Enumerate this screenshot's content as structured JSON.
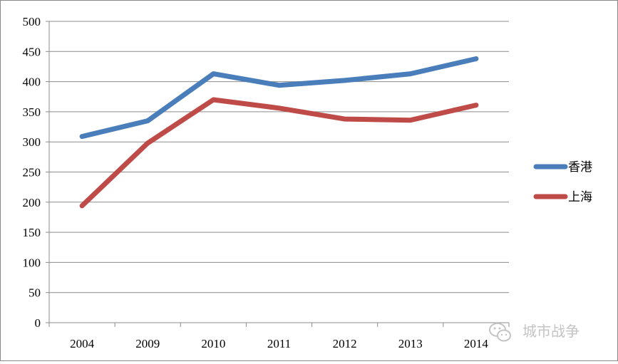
{
  "chart_data": {
    "type": "line",
    "categories": [
      "2004",
      "2009",
      "2010",
      "2011",
      "2012",
      "2013",
      "2014"
    ],
    "series": [
      {
        "name": "香港",
        "color": "#4a7ebb",
        "values": [
          309,
          335,
          413,
          394,
          402,
          413,
          438
        ]
      },
      {
        "name": "上海",
        "color": "#be4b48",
        "values": [
          194,
          298,
          370,
          356,
          338,
          336,
          361
        ]
      }
    ],
    "title": "",
    "xlabel": "",
    "ylabel": "",
    "ylim": [
      0,
      500
    ],
    "yticks": [
      0,
      50,
      100,
      150,
      200,
      250,
      300,
      350,
      400,
      450,
      500
    ],
    "grid": true,
    "legend_position": "right"
  },
  "watermark": {
    "text": "城市战争",
    "icon": "wechat-icon",
    "color": "#c4c4c4"
  }
}
